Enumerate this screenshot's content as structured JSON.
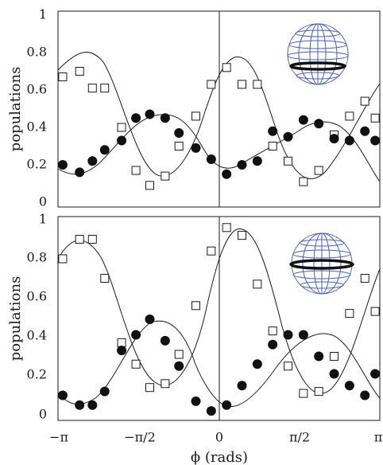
{
  "chart_data": [
    {
      "type": "scatter",
      "ylabel": "populations",
      "xlim": [
        -3.14159,
        3.14159
      ],
      "ylim": [
        0,
        1
      ],
      "yticks": [
        "0",
        "0.2",
        "0.4",
        "0.6",
        "0.8",
        "1"
      ],
      "inset": "sphere-with-ring-below-equator",
      "series": [
        {
          "marker": "open-square",
          "x": [
            -3.05,
            -2.72,
            -2.47,
            -2.23,
            -1.9,
            -1.62,
            -1.35,
            -1.05,
            -0.78,
            -0.45,
            -0.15,
            0.15,
            0.45,
            0.75,
            1.05,
            1.35,
            1.65,
            1.95,
            2.25,
            2.55,
            2.85,
            3.05
          ],
          "y": [
            0.67,
            0.7,
            0.61,
            0.61,
            0.4,
            0.17,
            0.09,
            0.14,
            0.3,
            0.46,
            0.63,
            0.72,
            0.63,
            0.63,
            0.3,
            0.22,
            0.11,
            0.17,
            0.36,
            0.46,
            0.54,
            0.45
          ]
        },
        {
          "marker": "filled-circle",
          "x": [
            -3.05,
            -2.72,
            -2.47,
            -2.23,
            -1.9,
            -1.62,
            -1.35,
            -1.05,
            -0.78,
            -0.45,
            -0.15,
            0.15,
            0.45,
            0.75,
            1.05,
            1.35,
            1.65,
            1.95,
            2.25,
            2.55,
            2.85,
            3.05
          ],
          "y": [
            0.2,
            0.16,
            0.22,
            0.28,
            0.33,
            0.45,
            0.47,
            0.45,
            0.37,
            0.29,
            0.23,
            0.15,
            0.2,
            0.22,
            0.38,
            0.35,
            0.44,
            0.42,
            0.34,
            0.33,
            0.38,
            0.33
          ]
        }
      ]
    },
    {
      "type": "scatter",
      "xlabel": "ϕ (rads)",
      "ylabel": "populations",
      "xlim": [
        -3.14159,
        3.14159
      ],
      "ylim": [
        0,
        1
      ],
      "xticks": [
        "−π",
        "−π/2",
        "0",
        "π/2",
        "π"
      ],
      "yticks": [
        "0",
        "0.2",
        "0.4",
        "0.6",
        "0.8",
        "1"
      ],
      "inset": "sphere-with-ring-at-equator",
      "series": [
        {
          "marker": "open-square",
          "x": [
            -3.05,
            -2.72,
            -2.47,
            -2.23,
            -1.9,
            -1.62,
            -1.35,
            -1.05,
            -0.78,
            -0.45,
            -0.15,
            0.15,
            0.45,
            0.75,
            1.05,
            1.35,
            1.65,
            1.95,
            2.25,
            2.55,
            2.85,
            3.05
          ],
          "y": [
            0.8,
            0.9,
            0.9,
            0.7,
            0.37,
            0.26,
            0.14,
            0.16,
            0.31,
            0.56,
            0.84,
            0.96,
            0.92,
            0.67,
            0.43,
            0.25,
            0.11,
            0.12,
            0.3,
            0.52,
            0.7,
            0.53
          ]
        },
        {
          "marker": "filled-circle",
          "x": [
            -3.05,
            -2.72,
            -2.47,
            -2.23,
            -1.9,
            -1.62,
            -1.35,
            -1.05,
            -0.78,
            -0.45,
            -0.15,
            0.15,
            0.45,
            0.75,
            1.05,
            1.35,
            1.65,
            1.95,
            2.25,
            2.55,
            2.85,
            3.05
          ],
          "y": [
            0.1,
            0.05,
            0.05,
            0.12,
            0.33,
            0.41,
            0.49,
            0.38,
            0.25,
            0.07,
            0.02,
            0.05,
            0.15,
            0.26,
            0.36,
            0.41,
            0.41,
            0.3,
            0.21,
            0.15,
            0.1,
            0.21
          ]
        }
      ]
    }
  ]
}
